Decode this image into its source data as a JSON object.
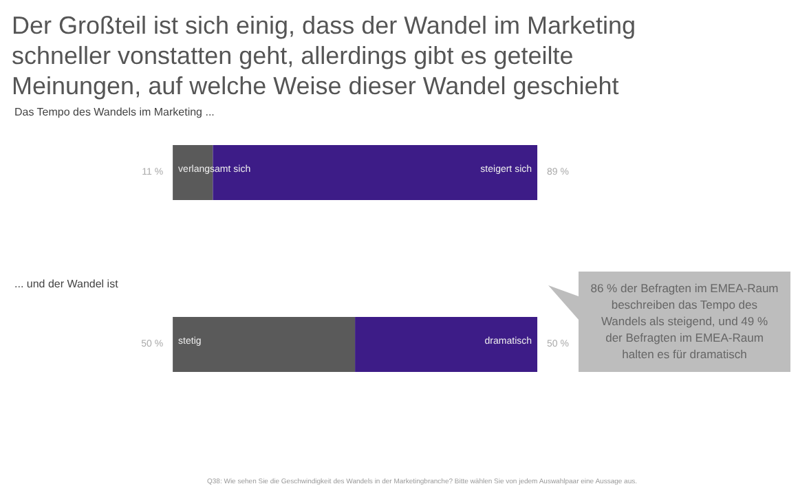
{
  "chart_data": {
    "type": "bar",
    "orientation": "horizontal",
    "stacked": true,
    "title": "Der Großteil ist sich einig, dass der Wandel im Marketing schneller vonstatten geht, allerdings gibt es geteilte Meinungen, auf welche Weise dieser Wandel geschieht",
    "categories": [
      "Das Tempo des Wandels im Marketing ...",
      "... und der Wandel ist"
    ],
    "series": [
      {
        "color": "#5a5a5a",
        "values": [
          11,
          50
        ],
        "value_labels": [
          "11 %",
          "50 %"
        ]
      },
      {
        "color": "#3d1c87",
        "values": [
          89,
          50
        ],
        "value_labels": [
          "89 %",
          "50 %"
        ]
      }
    ],
    "grid": false,
    "tick_labels": false,
    "annotations": [
      "verlangsamt sich",
      "steigert sich",
      "stetig",
      "dramatisch",
      "86 % der Befragten im EMEA-Raum beschreiben das Tempo des Wandels als steigend, und 49 % der Befragten im EMEA-Raum halten es für dramatisch",
      "Q38: Wie sehen Sie die Geschwindigkeit des Wandels in der Marketingbranche? Bitte wählen Sie von jedem Auswahlpaar eine Aussage aus."
    ]
  }
}
